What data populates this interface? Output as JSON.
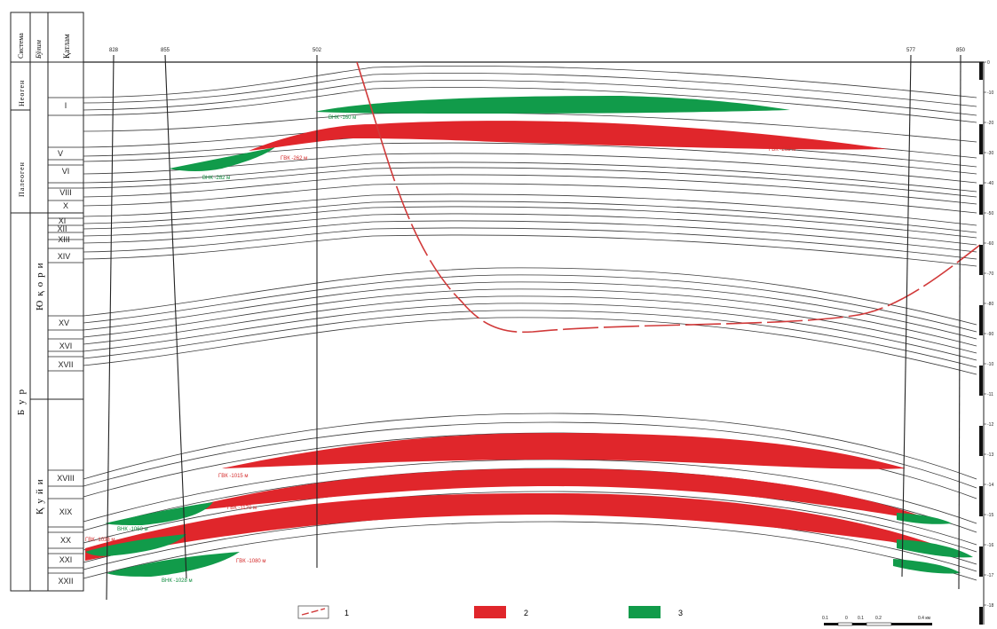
{
  "header": {
    "system": "Система",
    "suite": "Бўлим",
    "layer": "Қатлам"
  },
  "systems": [
    "Неоген",
    "Палеоген",
    "Бур"
  ],
  "departments": [
    "Юқори",
    "Қуйи"
  ],
  "layers": [
    "I",
    "V",
    "VI",
    "VIII",
    "X",
    "XI",
    "XII",
    "XIII",
    "XIV",
    "XV",
    "XVI",
    "XVII",
    "XVIII",
    "XIX",
    "XX",
    "XXI",
    "XXII"
  ],
  "wells": [
    "828",
    "855",
    "502",
    "577",
    "850"
  ],
  "depth_ticks": [
    "0",
    "-10",
    "-20",
    "-30",
    "-40",
    "-50",
    "-60",
    "-70",
    "-80",
    "-90",
    "-10",
    "-11",
    "-12",
    "-13",
    "-14",
    "-15",
    "-16",
    "-17",
    "-18"
  ],
  "contact_labels": [
    {
      "text": "ВНК -160 м",
      "color": "#0a8a3a"
    },
    {
      "text": "ГВК -262 м",
      "color": "#d42a2a"
    },
    {
      "text": "ГВК -263 м",
      "color": "#d42a2a"
    },
    {
      "text": "ВНК -282 м",
      "color": "#0a8a3a"
    },
    {
      "text": "ГВК -1015 м",
      "color": "#d42a2a"
    },
    {
      "text": "ГВК -1170 м",
      "color": "#d42a2a"
    },
    {
      "text": "ВНК -1060 м",
      "color": "#0a8a3a"
    },
    {
      "text": "ГВК -1038 м",
      "color": "#d42a2a"
    },
    {
      "text": "ГВК -1080 м",
      "color": "#d42a2a"
    },
    {
      "text": "ВНК -1028 м",
      "color": "#0a8a3a"
    }
  ],
  "legend": [
    {
      "num": "1",
      "kind": "fault"
    },
    {
      "num": "2",
      "kind": "gas"
    },
    {
      "num": "3",
      "kind": "oil"
    }
  ],
  "scale_bar": {
    "labels": [
      "0.1",
      "0",
      "0.1",
      "0.2",
      "0.4 км"
    ]
  },
  "colors": {
    "gas": "#e0262b",
    "oil": "#119b4a",
    "fault": "#d13a3a",
    "line": "#333333"
  }
}
